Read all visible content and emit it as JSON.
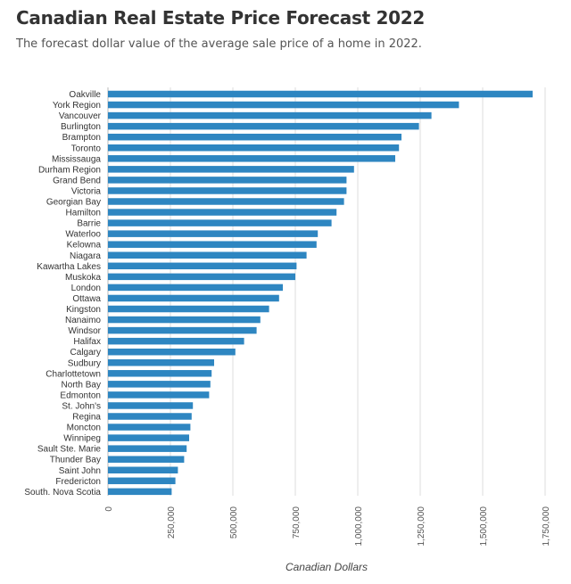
{
  "title": "Canadian Real Estate Price Forecast 2022",
  "subtitle": "The forecast dollar value of the average sale price of a home in 2022.",
  "chart_data": {
    "type": "bar",
    "orientation": "horizontal",
    "title": "Canadian Real Estate Price Forecast 2022",
    "subtitle": "The forecast dollar value of the average sale price of a home in 2022.",
    "xlabel": "Canadian Dollars",
    "ylabel": "",
    "xlim": [
      0,
      1750000
    ],
    "ticks": [
      0,
      250000,
      500000,
      750000,
      1000000,
      1250000,
      1500000,
      1750000
    ],
    "tick_labels": [
      "0",
      "250,000",
      "500,000",
      "750,000",
      "1,000,000",
      "1,250,000",
      "1,500,000",
      "1,750,000"
    ],
    "grid": "vertical",
    "bar_color": "#2e86c1",
    "categories": [
      "Oakville",
      "York Region",
      "Vancouver",
      "Burlington",
      "Brampton",
      "Toronto",
      "Mississauga",
      "Durham Region",
      "Grand Bend",
      "Victoria",
      "Georgian Bay",
      "Hamilton",
      "Barrie",
      "Waterloo",
      "Kelowna",
      "Niagara",
      "Kawartha Lakes",
      "Muskoka",
      "London",
      "Ottawa",
      "Kingston",
      "Nanaimo",
      "Windsor",
      "Halifax",
      "Calgary",
      "Sudbury",
      "Charlottetown",
      "North Bay",
      "Edmonton",
      "St. John's",
      "Regina",
      "Moncton",
      "Winnipeg",
      "Sault Ste. Marie",
      "Thunder Bay",
      "Saint John",
      "Fredericton",
      "South. Nova Scotia"
    ],
    "values": [
      1700000,
      1405000,
      1295000,
      1245000,
      1175000,
      1165000,
      1150000,
      985000,
      955000,
      955000,
      945000,
      915000,
      895000,
      840000,
      835000,
      795000,
      755000,
      750000,
      700000,
      685000,
      645000,
      610000,
      595000,
      545000,
      510000,
      425000,
      415000,
      410000,
      405000,
      340000,
      335000,
      330000,
      325000,
      315000,
      305000,
      280000,
      270000,
      255000
    ]
  }
}
